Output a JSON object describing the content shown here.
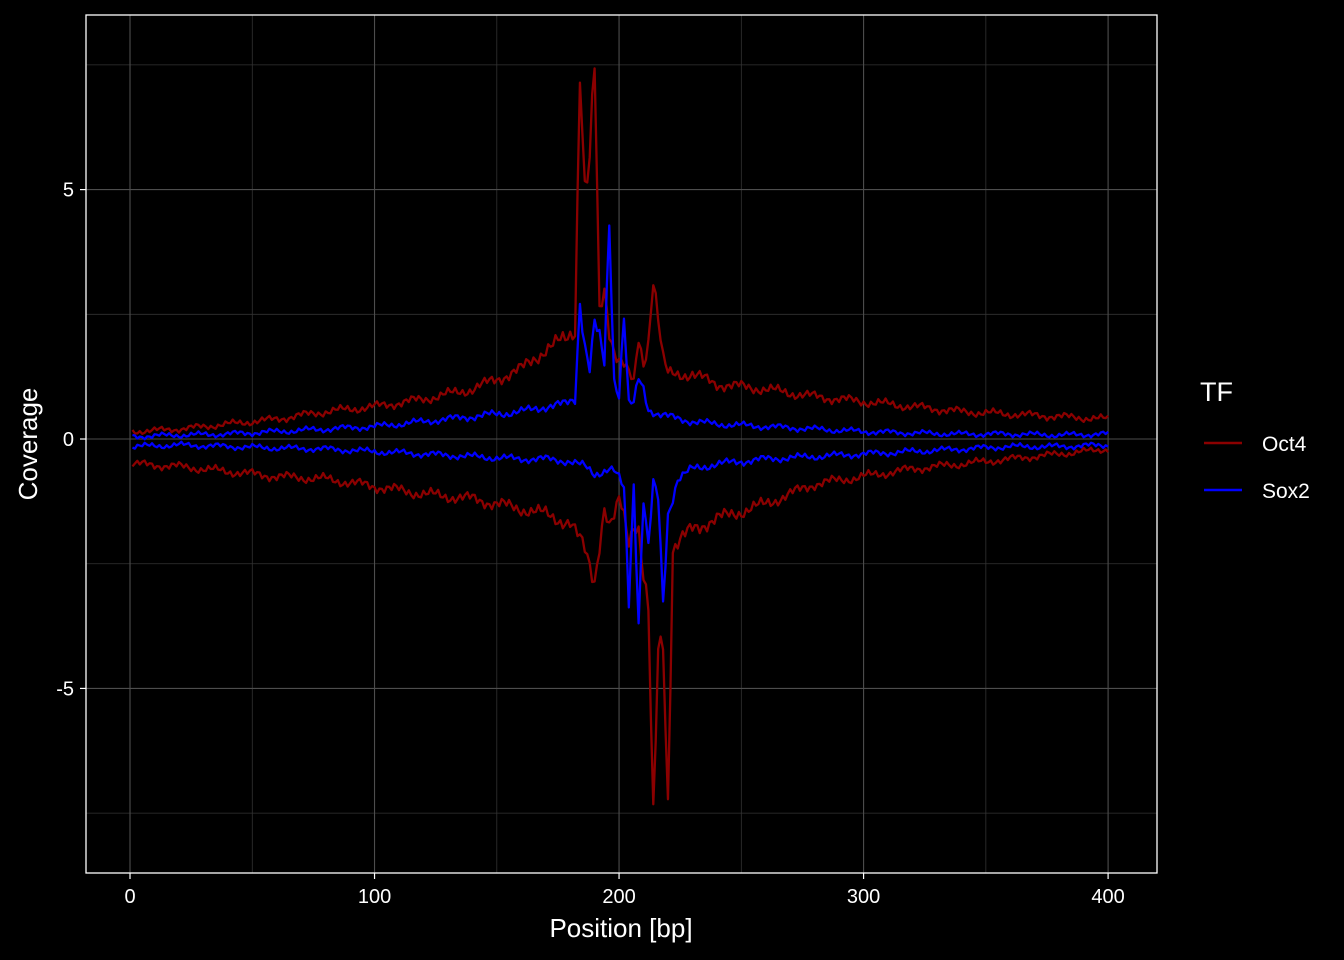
{
  "chart_data": {
    "type": "line",
    "xlabel": "Position [bp]",
    "ylabel": "Coverage",
    "xlim": [
      -18,
      420
    ],
    "ylim": [
      -8.7,
      8.5
    ],
    "x_ticks": [
      0,
      100,
      200,
      300,
      400
    ],
    "x_tick_labels": [
      "0",
      "100",
      "200",
      "300",
      "400"
    ],
    "x_minor": [
      50,
      150,
      250,
      350
    ],
    "y_ticks": [
      -5,
      0,
      5
    ],
    "y_tick_labels": [
      "-5",
      "0",
      "5"
    ],
    "y_minor": [
      -7.5,
      -2.5,
      2.5,
      7.5
    ],
    "grid": true,
    "legend": {
      "title": "TF",
      "placement": "right"
    },
    "series": [
      {
        "name": "Oct4",
        "color": "#8b0000",
        "strand": "plus",
        "x": [
          1,
          20,
          40,
          60,
          80,
          100,
          120,
          140,
          160,
          170,
          178,
          182,
          184,
          186,
          188,
          190,
          192,
          194,
          196,
          198,
          200,
          202,
          204,
          206,
          208,
          210,
          212,
          214,
          216,
          218,
          220,
          230,
          240,
          260,
          280,
          300,
          320,
          340,
          360,
          380,
          400
        ],
        "y": [
          0.15,
          0.2,
          0.3,
          0.4,
          0.55,
          0.65,
          0.8,
          1.0,
          1.4,
          1.8,
          2.0,
          2.2,
          7.6,
          5.0,
          5.5,
          7.4,
          2.5,
          3.0,
          2.2,
          1.8,
          1.6,
          1.5,
          1.3,
          1.1,
          2.0,
          1.5,
          2.0,
          3.3,
          2.4,
          1.6,
          1.3,
          1.3,
          1.1,
          1.0,
          0.85,
          0.75,
          0.65,
          0.55,
          0.5,
          0.45,
          0.4
        ]
      },
      {
        "name": "Oct4",
        "color": "#8b0000",
        "strand": "minus",
        "x": [
          1,
          20,
          40,
          60,
          80,
          100,
          120,
          140,
          160,
          170,
          180,
          186,
          190,
          194,
          196,
          198,
          200,
          202,
          204,
          206,
          208,
          210,
          212,
          214,
          216,
          218,
          220,
          222,
          230,
          240,
          260,
          280,
          300,
          320,
          340,
          360,
          380,
          400
        ],
        "y": [
          -0.5,
          -0.55,
          -0.65,
          -0.75,
          -0.8,
          -0.95,
          -1.1,
          -1.2,
          -1.4,
          -1.5,
          -1.7,
          -2.2,
          -2.8,
          -1.4,
          -1.8,
          -1.6,
          -1.2,
          -1.5,
          -2.0,
          -1.7,
          -1.8,
          -2.8,
          -3.5,
          -7.9,
          -4.2,
          -4.0,
          -7.2,
          -2.2,
          -1.8,
          -1.6,
          -1.3,
          -0.9,
          -0.75,
          -0.6,
          -0.5,
          -0.4,
          -0.3,
          -0.2
        ]
      },
      {
        "name": "Sox2",
        "color": "#0000ff",
        "strand": "plus",
        "x": [
          1,
          20,
          40,
          60,
          80,
          100,
          120,
          140,
          160,
          170,
          178,
          182,
          184,
          186,
          188,
          190,
          192,
          194,
          196,
          198,
          200,
          202,
          204,
          206,
          208,
          210,
          212,
          216,
          220,
          230,
          240,
          260,
          280,
          300,
          320,
          340,
          360,
          380,
          400
        ],
        "y": [
          0.05,
          0.08,
          0.1,
          0.15,
          0.2,
          0.25,
          0.35,
          0.45,
          0.55,
          0.65,
          0.7,
          0.8,
          2.8,
          1.9,
          1.4,
          2.3,
          2.0,
          1.5,
          4.4,
          1.2,
          0.9,
          2.5,
          0.7,
          0.7,
          1.2,
          1.0,
          0.6,
          0.5,
          0.45,
          0.35,
          0.3,
          0.25,
          0.2,
          0.15,
          0.12,
          0.1,
          0.1,
          0.08,
          0.1
        ]
      },
      {
        "name": "Sox2",
        "color": "#0000ff",
        "strand": "minus",
        "x": [
          1,
          20,
          40,
          60,
          80,
          100,
          120,
          140,
          160,
          170,
          180,
          186,
          190,
          196,
          198,
          200,
          202,
          204,
          206,
          208,
          210,
          212,
          214,
          216,
          218,
          220,
          224,
          230,
          240,
          260,
          280,
          300,
          320,
          340,
          360,
          380,
          400
        ],
        "y": [
          -0.15,
          -0.12,
          -0.15,
          -0.18,
          -0.2,
          -0.25,
          -0.3,
          -0.35,
          -0.4,
          -0.4,
          -0.45,
          -0.55,
          -0.7,
          -0.6,
          -0.65,
          -0.8,
          -1.0,
          -3.2,
          -0.9,
          -3.6,
          -1.2,
          -2.2,
          -0.9,
          -1.2,
          -3.3,
          -1.5,
          -0.8,
          -0.6,
          -0.5,
          -0.4,
          -0.35,
          -0.3,
          -0.25,
          -0.2,
          -0.15,
          -0.15,
          -0.12
        ]
      }
    ]
  }
}
